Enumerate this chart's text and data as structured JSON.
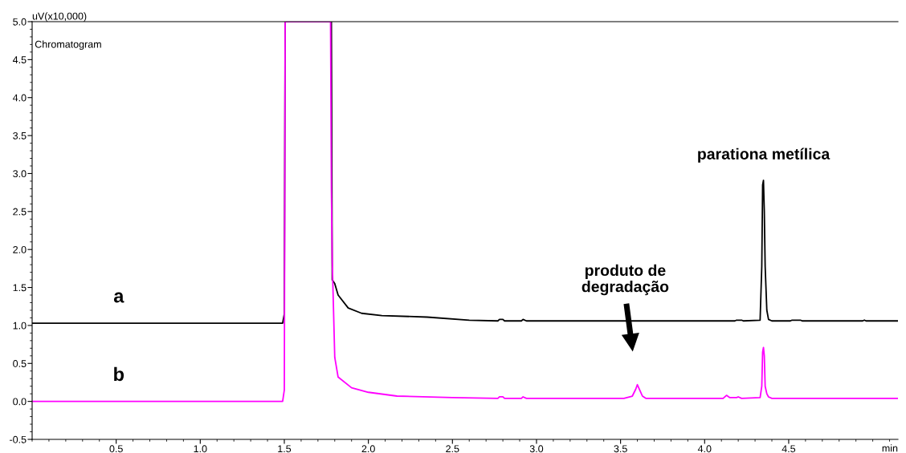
{
  "chart_data": {
    "type": "line",
    "ylabel": "uV(x10,000)",
    "xlabel": "min",
    "annotations": [
      "Chromatogram",
      {
        "text": "parationa metílica",
        "x": 4.35,
        "y": 2.91
      },
      "produto de\ndegradação"
    ],
    "xlim": [
      0,
      5.15
    ],
    "xticks": [
      {
        "value": 0.5,
        "label": "0.5"
      },
      {
        "value": 1.0,
        "label": "1.0"
      },
      {
        "value": 1.5,
        "label": "1.5"
      },
      {
        "value": 2.0,
        "label": "2.0"
      },
      {
        "value": 2.5,
        "label": "2.5"
      },
      {
        "value": 3.0,
        "label": "3.0"
      },
      {
        "value": 3.5,
        "label": "3.5"
      },
      {
        "value": 4.0,
        "label": "4.0"
      },
      {
        "value": 4.5,
        "label": "4.5"
      }
    ],
    "ylim": [
      -0.5,
      5.0
    ],
    "yticks": [
      -0.5,
      {
        "value": 0,
        "label": "0.0"
      },
      0.5,
      {
        "value": 1,
        "label": "1.0"
      },
      1.5,
      {
        "value": 2,
        "label": "2.0"
      },
      2.5,
      {
        "value": 3,
        "label": "3.0"
      },
      3.5,
      {
        "value": 4,
        "label": "4.0"
      },
      4.5,
      {
        "value": 5,
        "label": "5.0"
      }
    ],
    "grid": false,
    "legend": false,
    "marker": "none",
    "line_style": "solid",
    "series": [
      {
        "name": "a",
        "color": "#000000",
        "x": [
          0,
          1.49,
          1.5,
          1.505,
          1.78,
          1.785,
          1.8,
          1.82,
          1.88,
          1.96,
          2.08,
          2.35,
          2.6,
          2.77,
          2.78,
          2.8,
          2.81,
          2.91,
          2.92,
          2.94,
          3.5,
          4.18,
          4.19,
          4.22,
          4.23,
          4.33,
          4.34,
          4.345,
          4.35,
          4.355,
          4.36,
          4.37,
          4.38,
          4.4,
          4.51,
          4.52,
          4.57,
          4.58,
          4.94,
          4.95,
          4.96,
          5.15
        ],
        "values": [
          1.03,
          1.03,
          1.15,
          5.0,
          5.0,
          1.6,
          1.55,
          1.4,
          1.23,
          1.16,
          1.13,
          1.11,
          1.07,
          1.06,
          1.08,
          1.08,
          1.06,
          1.06,
          1.08,
          1.06,
          1.06,
          1.06,
          1.07,
          1.07,
          1.06,
          1.07,
          1.78,
          2.85,
          2.91,
          2.5,
          1.78,
          1.2,
          1.08,
          1.06,
          1.06,
          1.07,
          1.07,
          1.06,
          1.06,
          1.07,
          1.06,
          1.06
        ]
      },
      {
        "name": "b",
        "color": "#ff00ff",
        "x": [
          0,
          1.49,
          1.5,
          1.505,
          1.775,
          1.78,
          1.785,
          1.8,
          1.82,
          1.9,
          2.0,
          2.17,
          2.5,
          2.77,
          2.78,
          2.8,
          2.81,
          2.91,
          2.92,
          2.94,
          3.52,
          3.57,
          3.59,
          3.6,
          3.61,
          3.63,
          3.65,
          4.11,
          4.13,
          4.15,
          4.19,
          4.2,
          4.22,
          4.33,
          4.34,
          4.345,
          4.35,
          4.355,
          4.36,
          4.37,
          4.38,
          4.4,
          5.15
        ],
        "values": [
          0.0,
          0.0,
          0.15,
          5.0,
          5.0,
          2.8,
          1.86,
          0.58,
          0.32,
          0.18,
          0.12,
          0.07,
          0.05,
          0.04,
          0.06,
          0.06,
          0.04,
          0.04,
          0.06,
          0.04,
          0.04,
          0.07,
          0.16,
          0.22,
          0.17,
          0.07,
          0.04,
          0.04,
          0.08,
          0.05,
          0.05,
          0.06,
          0.04,
          0.05,
          0.2,
          0.65,
          0.71,
          0.6,
          0.2,
          0.1,
          0.06,
          0.04,
          0.04
        ]
      }
    ]
  }
}
